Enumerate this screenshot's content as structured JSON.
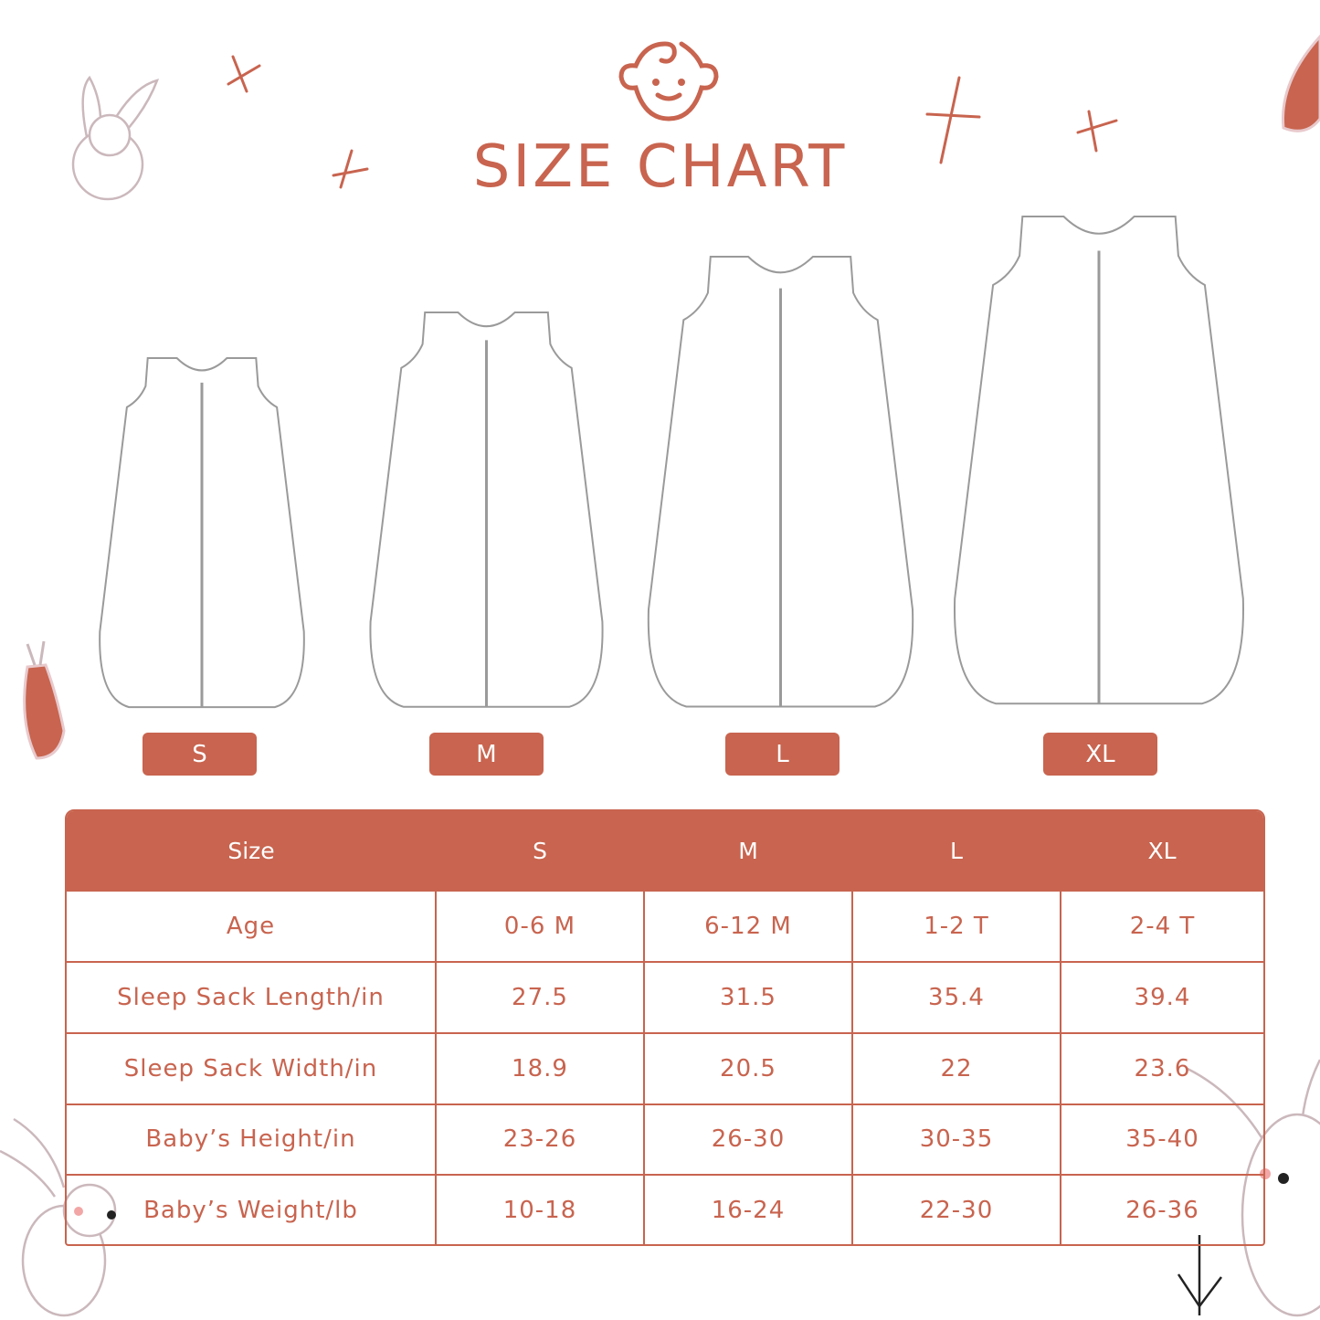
{
  "title": "SIZE CHART",
  "colors": {
    "accent": "#C8644F",
    "outline": "#9a9a9a"
  },
  "icons": [
    "baby-face-icon",
    "bunny-illustration",
    "carrot-illustration",
    "sparkle-cross-icon",
    "arrow-down-icon"
  ],
  "sizes": [
    "S",
    "M",
    "L",
    "XL"
  ],
  "table": {
    "headers": [
      "Size",
      "S",
      "M",
      "L",
      "XL"
    ],
    "rows": [
      {
        "label": "Age",
        "values": [
          "0-6 M",
          "6-12 M",
          "1-2 T",
          "2-4 T"
        ]
      },
      {
        "label": "Sleep Sack Length/in",
        "values": [
          "27.5",
          "31.5",
          "35.4",
          "39.4"
        ]
      },
      {
        "label": "Sleep Sack Width/in",
        "values": [
          "18.9",
          "20.5",
          "22",
          "23.6"
        ]
      },
      {
        "label": "Baby’s Height/in",
        "values": [
          "23-26",
          "26-30",
          "30-35",
          "35-40"
        ]
      },
      {
        "label": "Baby’s Weight/lb",
        "values": [
          "10-18",
          "16-24",
          "22-30",
          "26-36"
        ]
      }
    ]
  }
}
